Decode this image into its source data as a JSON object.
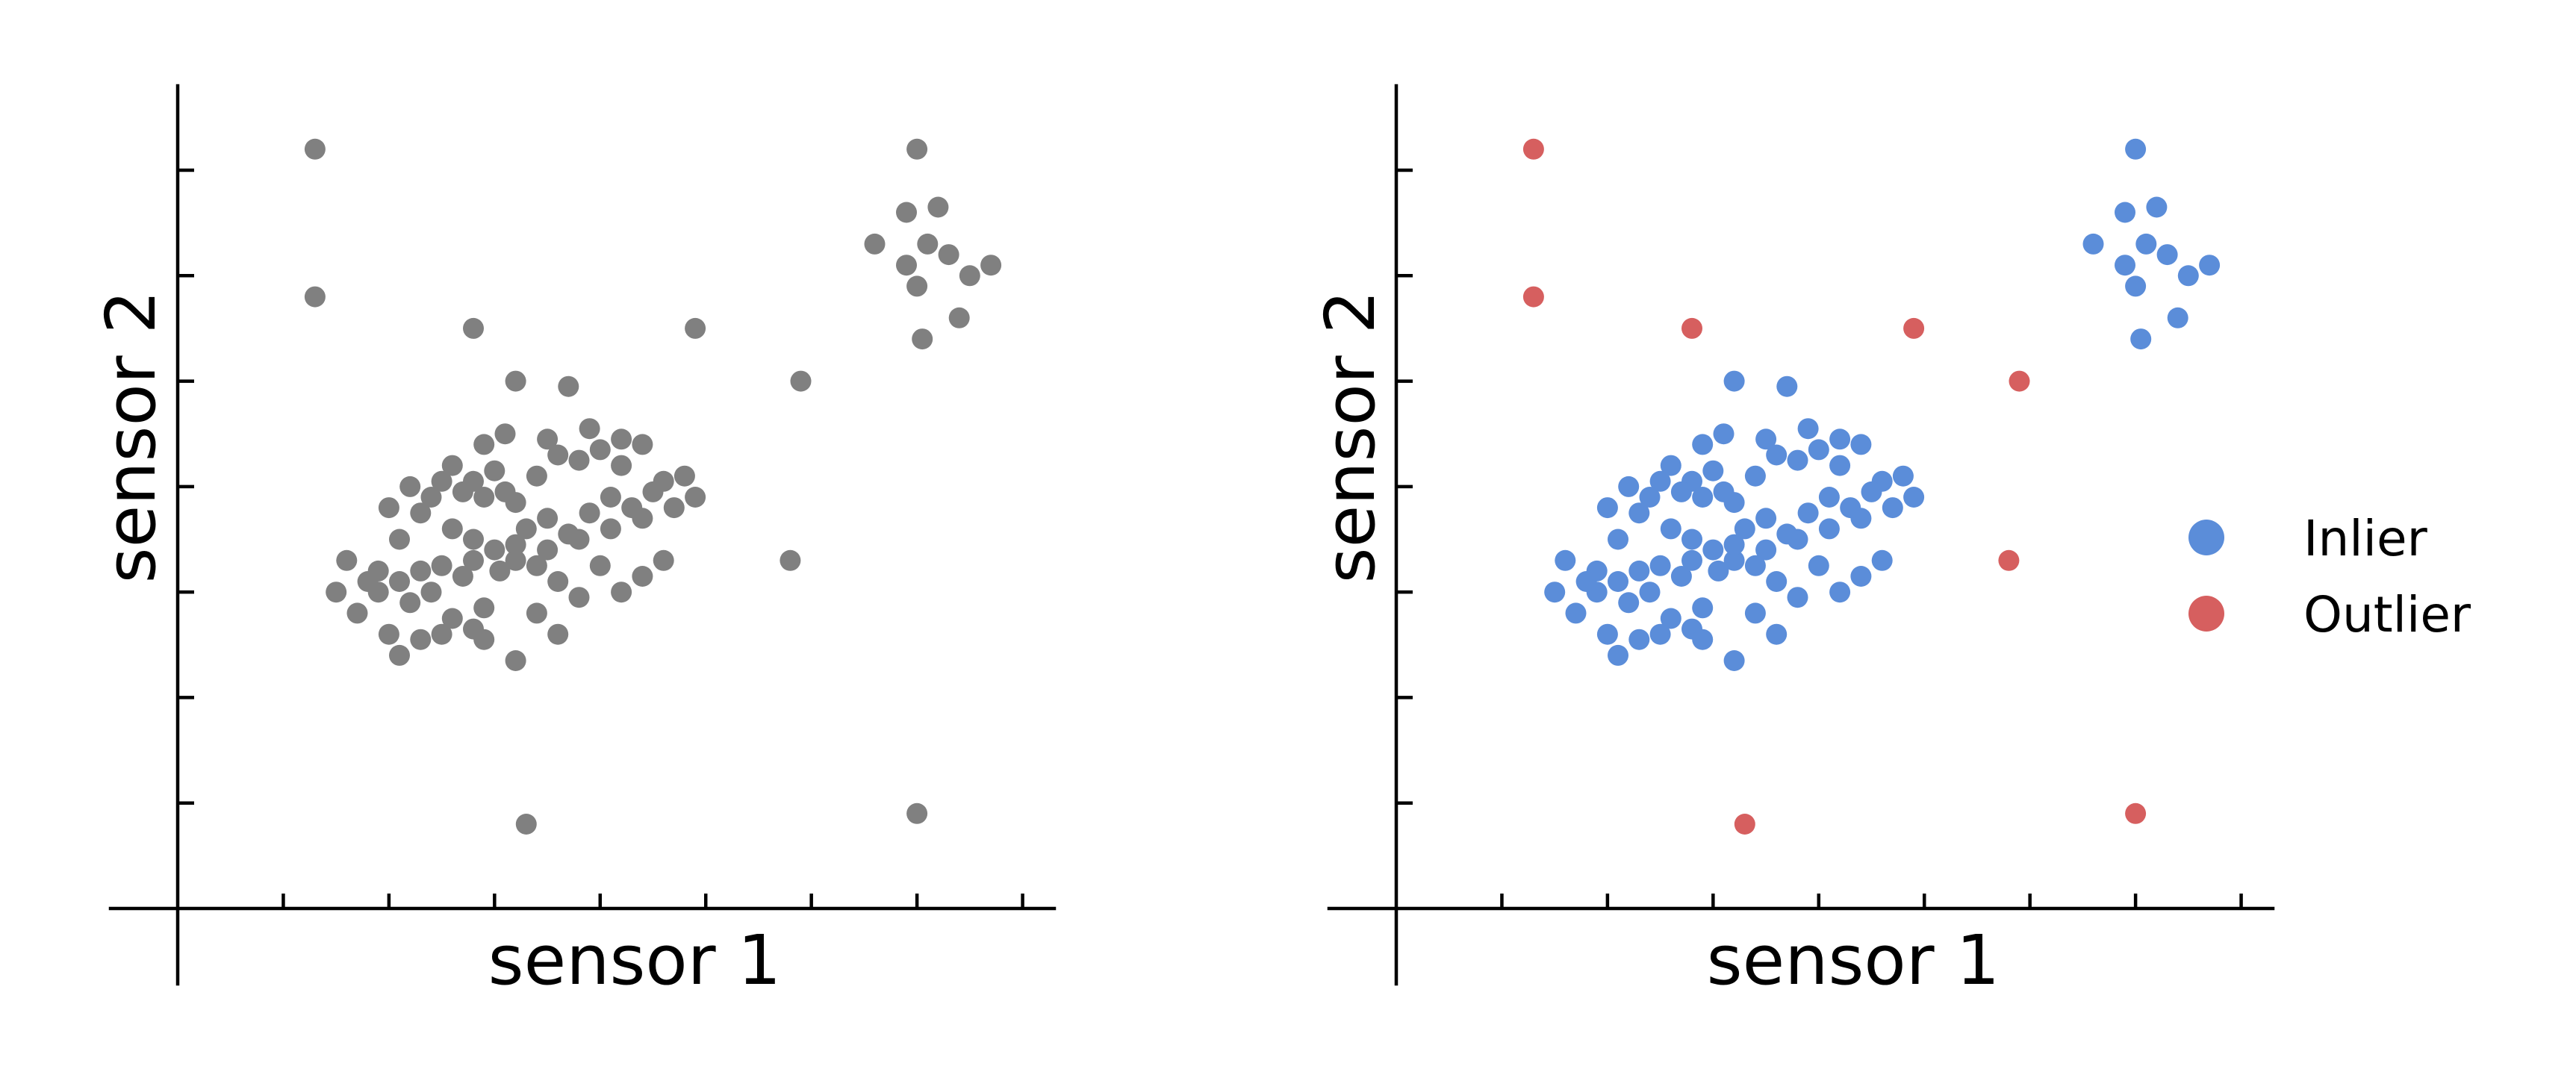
{
  "chart_data": [
    {
      "type": "scatter",
      "title": "",
      "xlabel": "sensor 1",
      "ylabel": "sensor 2",
      "xlim": [
        0,
        8.3
      ],
      "ylim": [
        0,
        7.8
      ],
      "grid": false,
      "point_color": "#808080",
      "series": [
        {
          "points": [
            [
              1.3,
              7.2
            ],
            [
              1.3,
              5.8
            ],
            [
              2.8,
              5.5
            ],
            [
              4.9,
              5.5
            ],
            [
              3.2,
              5.0
            ],
            [
              3.7,
              4.95
            ],
            [
              5.9,
              5.0
            ],
            [
              7.0,
              7.2
            ],
            [
              6.9,
              6.6
            ],
            [
              7.2,
              6.65
            ],
            [
              6.6,
              6.3
            ],
            [
              6.9,
              6.1
            ],
            [
              7.1,
              6.3
            ],
            [
              7.3,
              6.2
            ],
            [
              7.7,
              6.1
            ],
            [
              7.5,
              6.0
            ],
            [
              7.0,
              5.9
            ],
            [
              7.4,
              5.6
            ],
            [
              7.05,
              5.4
            ],
            [
              5.8,
              3.3
            ],
            [
              3.3,
              0.8
            ],
            [
              7.0,
              0.9
            ],
            [
              1.9,
              3.0
            ],
            [
              1.9,
              3.2
            ],
            [
              2.1,
              3.1
            ],
            [
              2.3,
              3.2
            ],
            [
              2.5,
              3.25
            ],
            [
              2.8,
              3.3
            ],
            [
              3.0,
              3.4
            ],
            [
              3.2,
              3.3
            ],
            [
              3.5,
              3.4
            ],
            [
              3.8,
              3.5
            ],
            [
              4.1,
              3.6
            ],
            [
              4.4,
              3.7
            ],
            [
              4.7,
              3.8
            ],
            [
              4.9,
              3.9
            ],
            [
              1.5,
              3.0
            ],
            [
              1.6,
              3.3
            ],
            [
              1.7,
              2.8
            ],
            [
              1.8,
              3.1
            ],
            [
              2.0,
              2.6
            ],
            [
              2.1,
              3.5
            ],
            [
              2.2,
              2.9
            ],
            [
              2.4,
              3.0
            ],
            [
              2.6,
              2.75
            ],
            [
              2.7,
              3.15
            ],
            [
              2.9,
              2.85
            ],
            [
              3.05,
              3.2
            ],
            [
              3.2,
              3.45
            ],
            [
              3.4,
              3.25
            ],
            [
              3.6,
              3.1
            ],
            [
              3.8,
              2.95
            ],
            [
              4.0,
              3.25
            ],
            [
              4.2,
              3.0
            ],
            [
              4.4,
              3.15
            ],
            [
              4.6,
              3.3
            ],
            [
              2.0,
              3.8
            ],
            [
              2.2,
              4.0
            ],
            [
              2.4,
              3.9
            ],
            [
              2.6,
              4.2
            ],
            [
              2.8,
              4.05
            ],
            [
              3.0,
              4.15
            ],
            [
              3.2,
              3.85
            ],
            [
              3.4,
              4.1
            ],
            [
              3.6,
              4.3
            ],
            [
              3.8,
              4.25
            ],
            [
              4.0,
              4.35
            ],
            [
              4.2,
              4.2
            ],
            [
              4.4,
              4.4
            ],
            [
              4.6,
              4.05
            ],
            [
              4.8,
              4.1
            ],
            [
              2.5,
              4.05
            ],
            [
              2.9,
              3.9
            ],
            [
              3.1,
              3.95
            ],
            [
              2.3,
              3.75
            ],
            [
              2.7,
              3.95
            ],
            [
              3.3,
              3.6
            ],
            [
              3.5,
              3.7
            ],
            [
              3.7,
              3.55
            ],
            [
              3.9,
              3.75
            ],
            [
              4.1,
              3.9
            ],
            [
              4.3,
              3.8
            ],
            [
              4.5,
              3.95
            ],
            [
              2.9,
              4.4
            ],
            [
              3.1,
              4.5
            ],
            [
              3.5,
              4.45
            ],
            [
              3.9,
              4.55
            ],
            [
              4.2,
              4.45
            ],
            [
              2.6,
              3.6
            ],
            [
              2.8,
              3.5
            ],
            [
              2.3,
              2.55
            ],
            [
              2.5,
              2.6
            ],
            [
              2.8,
              2.65
            ],
            [
              3.2,
              2.35
            ],
            [
              3.6,
              2.6
            ],
            [
              2.1,
              2.4
            ],
            [
              2.9,
              2.55
            ],
            [
              3.4,
              2.8
            ]
          ]
        }
      ]
    },
    {
      "type": "scatter",
      "title": "",
      "xlabel": "sensor 1",
      "ylabel": "sensor 2",
      "xlim": [
        0,
        8.3
      ],
      "ylim": [
        0,
        7.8
      ],
      "grid": false,
      "legend": "right",
      "series": [
        {
          "name": "Inlier",
          "color": "#5b8dd9",
          "points": [
            [
              7.0,
              7.2
            ],
            [
              6.9,
              6.6
            ],
            [
              7.2,
              6.65
            ],
            [
              6.6,
              6.3
            ],
            [
              6.9,
              6.1
            ],
            [
              7.1,
              6.3
            ],
            [
              7.3,
              6.2
            ],
            [
              7.7,
              6.1
            ],
            [
              7.5,
              6.0
            ],
            [
              7.0,
              5.9
            ],
            [
              7.4,
              5.6
            ],
            [
              7.05,
              5.4
            ],
            [
              1.9,
              3.0
            ],
            [
              1.9,
              3.2
            ],
            [
              2.1,
              3.1
            ],
            [
              2.3,
              3.2
            ],
            [
              2.5,
              3.25
            ],
            [
              2.8,
              3.3
            ],
            [
              3.0,
              3.4
            ],
            [
              3.2,
              3.3
            ],
            [
              3.5,
              3.4
            ],
            [
              3.8,
              3.5
            ],
            [
              4.1,
              3.6
            ],
            [
              4.4,
              3.7
            ],
            [
              4.7,
              3.8
            ],
            [
              4.9,
              3.9
            ],
            [
              1.5,
              3.0
            ],
            [
              1.6,
              3.3
            ],
            [
              1.7,
              2.8
            ],
            [
              1.8,
              3.1
            ],
            [
              2.0,
              2.6
            ],
            [
              2.1,
              3.5
            ],
            [
              2.2,
              2.9
            ],
            [
              2.4,
              3.0
            ],
            [
              2.6,
              2.75
            ],
            [
              2.7,
              3.15
            ],
            [
              2.9,
              2.85
            ],
            [
              3.05,
              3.2
            ],
            [
              3.2,
              3.45
            ],
            [
              3.4,
              3.25
            ],
            [
              3.6,
              3.1
            ],
            [
              3.8,
              2.95
            ],
            [
              4.0,
              3.25
            ],
            [
              4.2,
              3.0
            ],
            [
              4.4,
              3.15
            ],
            [
              4.6,
              3.3
            ],
            [
              2.0,
              3.8
            ],
            [
              2.2,
              4.0
            ],
            [
              2.4,
              3.9
            ],
            [
              2.6,
              4.2
            ],
            [
              2.8,
              4.05
            ],
            [
              3.0,
              4.15
            ],
            [
              3.2,
              3.85
            ],
            [
              3.4,
              4.1
            ],
            [
              3.6,
              4.3
            ],
            [
              3.8,
              4.25
            ],
            [
              4.0,
              4.35
            ],
            [
              4.2,
              4.2
            ],
            [
              4.4,
              4.4
            ],
            [
              4.6,
              4.05
            ],
            [
              4.8,
              4.1
            ],
            [
              2.5,
              4.05
            ],
            [
              2.9,
              3.9
            ],
            [
              3.1,
              3.95
            ],
            [
              2.3,
              3.75
            ],
            [
              2.7,
              3.95
            ],
            [
              3.3,
              3.6
            ],
            [
              3.5,
              3.7
            ],
            [
              3.7,
              3.55
            ],
            [
              3.9,
              3.75
            ],
            [
              4.1,
              3.9
            ],
            [
              4.3,
              3.8
            ],
            [
              4.5,
              3.95
            ],
            [
              2.9,
              4.4
            ],
            [
              3.1,
              4.5
            ],
            [
              3.5,
              4.45
            ],
            [
              3.9,
              4.55
            ],
            [
              4.2,
              4.45
            ],
            [
              2.6,
              3.6
            ],
            [
              2.8,
              3.5
            ],
            [
              2.3,
              2.55
            ],
            [
              2.5,
              2.6
            ],
            [
              2.8,
              2.65
            ],
            [
              3.2,
              2.35
            ],
            [
              3.6,
              2.6
            ],
            [
              2.1,
              2.4
            ],
            [
              2.9,
              2.55
            ],
            [
              3.4,
              2.8
            ],
            [
              3.2,
              5.0
            ],
            [
              3.7,
              4.95
            ]
          ]
        },
        {
          "name": "Outlier",
          "color": "#d65f5f",
          "points": [
            [
              1.3,
              7.2
            ],
            [
              1.3,
              5.8
            ],
            [
              2.8,
              5.5
            ],
            [
              4.9,
              5.5
            ],
            [
              5.9,
              5.0
            ],
            [
              5.8,
              3.3
            ],
            [
              3.3,
              0.8
            ],
            [
              7.0,
              0.9
            ]
          ]
        }
      ]
    }
  ]
}
